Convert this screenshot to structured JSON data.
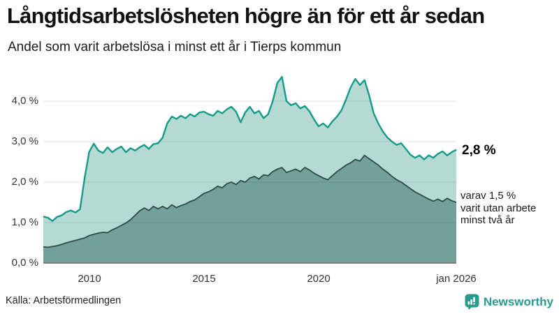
{
  "header": {
    "title": "Långtidsarbetslösheten högre än för ett år sedan",
    "subtitle": "Andel som varit arbetslösa i minst ett år i Tierps kommun"
  },
  "chart_data": {
    "type": "area",
    "title": "Långtidsarbetslösheten högre än för ett år sedan",
    "subtitle": "Andel som varit arbetslösa i minst ett år i Tierps kommun",
    "x_unit": "year",
    "x_start": 2008.0,
    "x_end": 2026.0,
    "x_step_years": 0.2,
    "ylim": [
      0,
      4.7
    ],
    "grid": "horizontal",
    "legend": "none",
    "series": [
      {
        "name": "Andel arbetslösa minst ett år",
        "line_color": "#169b8b",
        "fill_color": "#b5dad3",
        "line_width": 2.4,
        "values": [
          1.15,
          1.12,
          1.04,
          1.14,
          1.18,
          1.26,
          1.3,
          1.25,
          1.33,
          2.1,
          2.75,
          2.95,
          2.78,
          2.72,
          2.86,
          2.74,
          2.82,
          2.88,
          2.74,
          2.84,
          2.78,
          2.86,
          2.92,
          2.82,
          2.94,
          2.96,
          3.1,
          3.45,
          3.62,
          3.56,
          3.64,
          3.58,
          3.68,
          3.62,
          3.72,
          3.74,
          3.68,
          3.64,
          3.76,
          3.7,
          3.8,
          3.86,
          3.74,
          3.48,
          3.72,
          3.86,
          3.7,
          3.76,
          3.58,
          3.68,
          4.0,
          4.45,
          4.6,
          4.0,
          3.9,
          3.95,
          3.82,
          3.88,
          3.75,
          3.55,
          3.38,
          3.45,
          3.35,
          3.5,
          3.62,
          3.78,
          4.05,
          4.35,
          4.55,
          4.4,
          4.52,
          4.15,
          3.7,
          3.45,
          3.25,
          3.1,
          3.0,
          2.92,
          2.96,
          2.82,
          2.68,
          2.6,
          2.66,
          2.56,
          2.66,
          2.6,
          2.7,
          2.76,
          2.66,
          2.74,
          2.8
        ]
      },
      {
        "name": "varav arbetslösa minst två år",
        "line_color": "#2f4b46",
        "fill_color": "#72a09a",
        "line_width": 1.8,
        "values": [
          0.4,
          0.39,
          0.41,
          0.43,
          0.46,
          0.5,
          0.53,
          0.56,
          0.59,
          0.62,
          0.68,
          0.71,
          0.74,
          0.76,
          0.75,
          0.82,
          0.87,
          0.93,
          0.99,
          1.07,
          1.18,
          1.29,
          1.36,
          1.3,
          1.4,
          1.34,
          1.4,
          1.34,
          1.44,
          1.37,
          1.42,
          1.46,
          1.52,
          1.56,
          1.64,
          1.72,
          1.76,
          1.82,
          1.9,
          1.86,
          1.96,
          2.0,
          1.94,
          2.04,
          2.0,
          2.1,
          2.14,
          2.08,
          2.18,
          2.16,
          2.26,
          2.32,
          2.36,
          2.24,
          2.28,
          2.32,
          2.26,
          2.36,
          2.3,
          2.22,
          2.16,
          2.1,
          2.06,
          2.16,
          2.26,
          2.34,
          2.42,
          2.48,
          2.56,
          2.52,
          2.66,
          2.58,
          2.5,
          2.42,
          2.32,
          2.24,
          2.14,
          2.06,
          2.0,
          1.92,
          1.84,
          1.76,
          1.7,
          1.64,
          1.58,
          1.53,
          1.58,
          1.52,
          1.6,
          1.54,
          1.5
        ]
      }
    ],
    "yticks": [
      {
        "value": 0,
        "label": "0,0 %"
      },
      {
        "value": 1,
        "label": "1,0 %"
      },
      {
        "value": 2,
        "label": "2,0 %"
      },
      {
        "value": 3,
        "label": "3,0 %"
      },
      {
        "value": 4,
        "label": "4,0 %"
      }
    ],
    "xticks": [
      {
        "value": 2010,
        "label": "2010"
      },
      {
        "value": 2015,
        "label": "2015"
      },
      {
        "value": 2020,
        "label": "2020"
      },
      {
        "value": 2026,
        "label": "jan 2026"
      }
    ],
    "annotations": {
      "end_value_label": "2,8 %",
      "sub_lines": [
        "varav 1,5 %",
        "varit utan arbete",
        "minst två år"
      ]
    },
    "grid_color": "#dcdce0",
    "axis_color": "#6e6e6e"
  },
  "footer": {
    "source": "Källa: Arbetsförmedlingen",
    "brand": "Newsworthy",
    "brand_color": "#2a9a8c"
  }
}
